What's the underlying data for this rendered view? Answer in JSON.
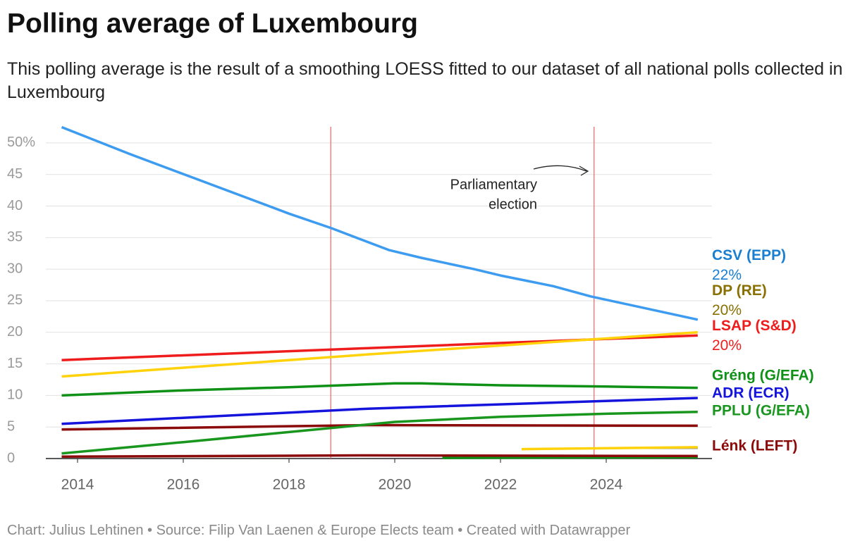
{
  "chart_data": {
    "type": "line",
    "title": "Polling average of Luxembourg",
    "subtitle": "This polling average is the result of a smoothing LOESS fitted to our dataset of all national polls collected in Luxembourg",
    "footer": "Chart: Julius Lehtinen • Source: Filip Van Laenen & Europe Elects team • Created with Datawrapper",
    "xlim": [
      2013.4,
      2026
    ],
    "xticks": [
      2014,
      2016,
      2018,
      2020,
      2022,
      2024
    ],
    "ylim": [
      0,
      53
    ],
    "yticks": [
      0,
      5,
      10,
      15,
      20,
      25,
      30,
      35,
      40,
      45,
      {
        "value": 50,
        "label": "50%"
      }
    ],
    "grid": true,
    "vlines": [
      2018.79,
      2023.77
    ],
    "vline_color": "#e06666",
    "annotation": {
      "lines": [
        "Parliamentary",
        "election"
      ]
    },
    "series": [
      {
        "name": "CSV (EPP)",
        "color": "#3d9cf0",
        "label_color": "#1a7fd1",
        "x": [
          2013.7,
          2015,
          2016.5,
          2018,
          2018.8,
          2019.9,
          2020.5,
          2021.5,
          2022,
          2023,
          2023.7,
          2025.73
        ],
        "values": [
          52.5,
          48.2,
          43.5,
          38.8,
          36.5,
          33,
          31.8,
          30,
          29,
          27.3,
          25.7,
          22
        ],
        "value_labels": [
          null,
          null,
          null,
          null,
          null,
          null,
          null,
          null,
          null,
          null,
          null,
          "22%"
        ]
      },
      {
        "name": "DP (RE)",
        "color": "#ffd20a",
        "label_color": "#8a7000",
        "x": [
          2013.7,
          2019.5,
          2025.73
        ],
        "values": [
          13,
          16.5,
          20
        ],
        "value_labels": [
          null,
          null,
          "20%"
        ]
      },
      {
        "name": "LSAP (S&D)",
        "color": "#ee1c1c",
        "label_color": "#ee1c1c",
        "x": [
          2013.7,
          2019.5,
          2025.73
        ],
        "values": [
          15.6,
          17.5,
          19.5
        ],
        "value_labels": [
          null,
          null,
          "20%"
        ]
      },
      {
        "name": "Gréng (G/EFA)",
        "color": "#0f9118",
        "label_color": "#0f9118",
        "x": [
          2013.7,
          2016,
          2018,
          2020,
          2020.5,
          2022,
          2024,
          2025.73
        ],
        "values": [
          10,
          10.8,
          11.3,
          11.9,
          11.9,
          11.6,
          11.4,
          11.2
        ]
      },
      {
        "name": "ADR (ECR)",
        "color": "#1414dc",
        "label_color": "#1414dc",
        "x": [
          2013.7,
          2019.5,
          2025.73
        ],
        "values": [
          5.5,
          7.9,
          9.6
        ]
      },
      {
        "name": "PPLU (G/EFA)",
        "color": "#19961e",
        "label_color": "#19961e",
        "x": [
          2013.7,
          2016,
          2018,
          2020,
          2022,
          2024,
          2025.73
        ],
        "values": [
          0.8,
          2.6,
          4.2,
          5.8,
          6.6,
          7.1,
          7.4
        ]
      },
      {
        "name": "Lénk (LEFT)",
        "color": "#8b0a0a",
        "label_color": "#8b0a0a",
        "x": [
          2013.7,
          2019.5,
          2025.73
        ],
        "values": [
          4.6,
          5.3,
          5.2
        ]
      },
      {
        "color": "#8b0a0a",
        "x": [
          2013.7,
          2019.5,
          2025.73
        ],
        "values": [
          0.3,
          0.5,
          0.4
        ]
      },
      {
        "color": "#0f9118",
        "x": [
          2020.9,
          2025.73
        ],
        "values": [
          0.1,
          0.2
        ]
      },
      {
        "color": "#ffd20a",
        "x": [
          2022.4,
          2025.73
        ],
        "values": [
          1.5,
          1.8
        ]
      },
      {
        "color": "#8c8c8c",
        "x": [
          2024.7,
          2025.73
        ],
        "values": [
          1.7,
          1.7
        ]
      }
    ]
  }
}
